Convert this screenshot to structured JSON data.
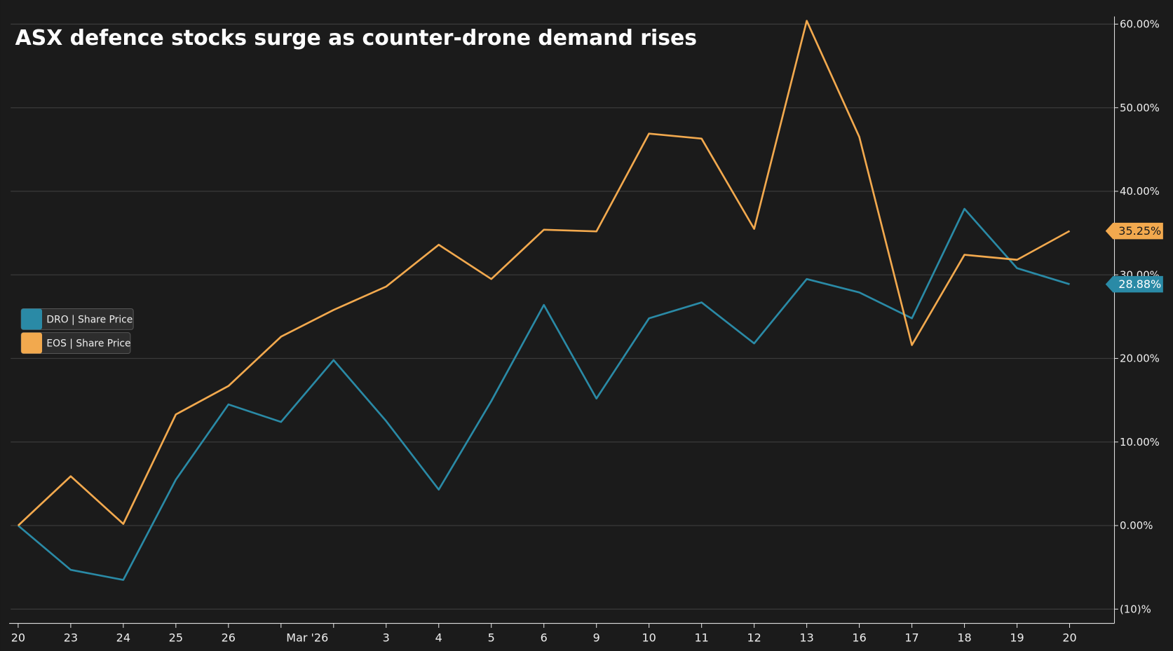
{
  "chart_data": {
    "type": "line",
    "title": "ASX defence stocks surge as counter-drone demand rises",
    "categories": [
      "20",
      "23",
      "24",
      "25",
      "26",
      null,
      null,
      "3",
      "4",
      "5",
      "6",
      "9",
      "10",
      "11",
      "12",
      "13",
      "16",
      "17",
      "18",
      "19",
      "20"
    ],
    "month_label": "Mar '26",
    "series": [
      {
        "name": "DRO | Share Price",
        "color": "#2a8aa6",
        "values": [
          0,
          -5.3,
          -6.5,
          5.5,
          14.5,
          12.4,
          19.8,
          12.5,
          4.3,
          14.9,
          26.4,
          15.2,
          24.8,
          26.7,
          21.8,
          29.5,
          27.9,
          24.8,
          37.9,
          30.8,
          28.88
        ],
        "end_label": "28.88%"
      },
      {
        "name": "EOS | Share Price",
        "color": "#f2a94e",
        "values": [
          0,
          5.9,
          0.2,
          13.3,
          16.7,
          22.6,
          25.8,
          28.6,
          33.6,
          29.5,
          35.4,
          35.2,
          46.9,
          46.3,
          35.5,
          60.4,
          46.5,
          21.6,
          32.4,
          31.8,
          35.25
        ],
        "end_label": "35.25%"
      }
    ],
    "ylim": [
      -11.7,
      61.1
    ],
    "yticks": [
      {
        "value": -10,
        "label": "(10)%"
      },
      {
        "value": 0,
        "label": "0.00%"
      },
      {
        "value": 10,
        "label": "10.00%"
      },
      {
        "value": 20,
        "label": "20.00%"
      },
      {
        "value": 30,
        "label": "30.00%"
      },
      {
        "value": 40,
        "label": "40.00%"
      },
      {
        "value": 50,
        "label": "50.00%"
      },
      {
        "value": 60,
        "label": "60.00%"
      }
    ],
    "grid": true,
    "legend": "left"
  }
}
